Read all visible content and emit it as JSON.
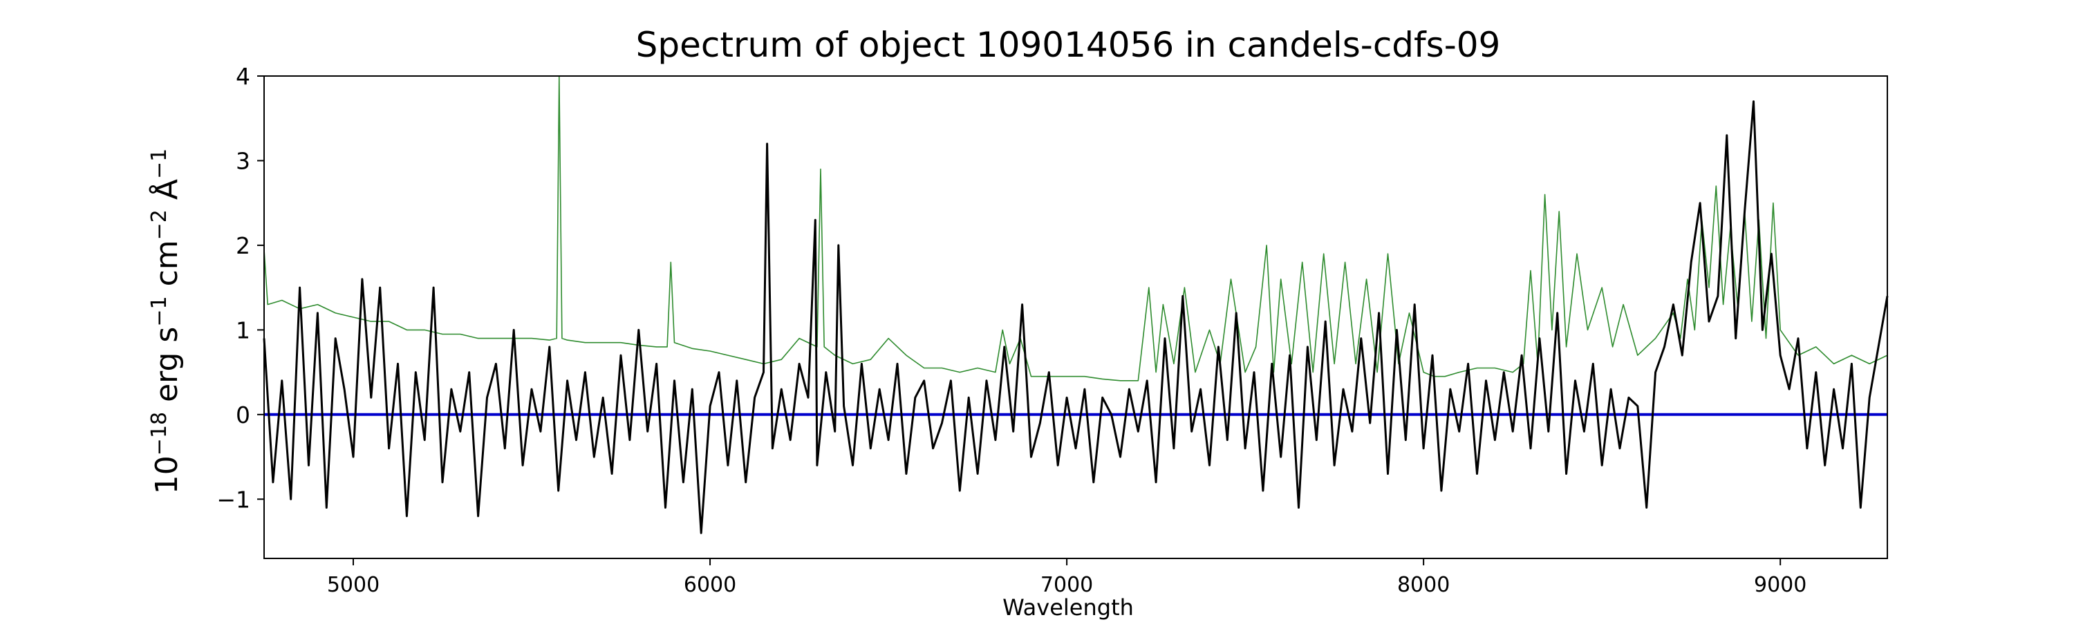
{
  "chart_data": {
    "type": "line",
    "title": "Spectrum of object 109014056 in candels-cdfs-09",
    "xlabel": "Wavelength",
    "ylabel": {
      "base": "10",
      "exp1": "−18",
      "erg": " erg s",
      "exp2": "−1",
      "cm": " cm",
      "exp3": "−2",
      "ang": " Å",
      "exp4": "−1"
    },
    "xlim": [
      4750,
      9300
    ],
    "ylim": [
      -1.7,
      4.0
    ],
    "x_ticks": [
      5000,
      6000,
      7000,
      8000,
      9000
    ],
    "x_tick_labels": [
      "5000",
      "6000",
      "7000",
      "8000",
      "9000"
    ],
    "y_ticks": [
      -1,
      0,
      1,
      2,
      3,
      4
    ],
    "y_tick_labels": [
      "−1",
      "0",
      "1",
      "2",
      "3",
      "4"
    ],
    "grid": false,
    "legend": "none",
    "colors": {
      "flux": "#000000",
      "noise": "#2e8b2e",
      "zero": "#0000cc"
    },
    "series": [
      {
        "key": "flux",
        "x": [
          4750,
          4775,
          4800,
          4825,
          4850,
          4875,
          4900,
          4925,
          4950,
          4975,
          5000,
          5025,
          5050,
          5075,
          5100,
          5125,
          5150,
          5175,
          5200,
          5225,
          5250,
          5275,
          5300,
          5325,
          5350,
          5375,
          5400,
          5425,
          5450,
          5475,
          5500,
          5525,
          5550,
          5575,
          5600,
          5625,
          5650,
          5675,
          5700,
          5725,
          5750,
          5775,
          5800,
          5825,
          5850,
          5875,
          5900,
          5925,
          5950,
          5975,
          6000,
          6025,
          6050,
          6075,
          6100,
          6125,
          6150,
          6160,
          6175,
          6200,
          6225,
          6250,
          6275,
          6295,
          6300,
          6325,
          6350,
          6360,
          6375,
          6400,
          6425,
          6450,
          6475,
          6500,
          6525,
          6550,
          6575,
          6600,
          6625,
          6650,
          6675,
          6700,
          6725,
          6750,
          6775,
          6800,
          6825,
          6850,
          6875,
          6900,
          6925,
          6950,
          6975,
          7000,
          7025,
          7050,
          7075,
          7100,
          7125,
          7150,
          7175,
          7200,
          7225,
          7250,
          7275,
          7300,
          7325,
          7350,
          7375,
          7400,
          7425,
          7450,
          7475,
          7500,
          7525,
          7550,
          7575,
          7600,
          7625,
          7650,
          7675,
          7700,
          7725,
          7750,
          7775,
          7800,
          7825,
          7850,
          7875,
          7900,
          7925,
          7950,
          7975,
          8000,
          8025,
          8050,
          8075,
          8100,
          8125,
          8150,
          8175,
          8200,
          8225,
          8250,
          8275,
          8300,
          8325,
          8350,
          8375,
          8400,
          8425,
          8450,
          8475,
          8500,
          8525,
          8550,
          8575,
          8600,
          8625,
          8650,
          8675,
          8700,
          8725,
          8750,
          8775,
          8800,
          8825,
          8850,
          8875,
          8900,
          8925,
          8950,
          8975,
          9000,
          9025,
          9050,
          9075,
          9100,
          9125,
          9150,
          9175,
          9200,
          9225,
          9250,
          9275,
          9300
        ],
        "y": [
          0.9,
          -0.8,
          0.4,
          -1.0,
          1.5,
          -0.6,
          1.2,
          -1.1,
          0.9,
          0.3,
          -0.5,
          1.6,
          0.2,
          1.5,
          -0.4,
          0.6,
          -1.2,
          0.5,
          -0.3,
          1.5,
          -0.8,
          0.3,
          -0.2,
          0.5,
          -1.2,
          0.2,
          0.6,
          -0.4,
          1.0,
          -0.6,
          0.3,
          -0.2,
          0.8,
          -0.9,
          0.4,
          -0.3,
          0.5,
          -0.5,
          0.2,
          -0.7,
          0.7,
          -0.3,
          1.0,
          -0.2,
          0.6,
          -1.1,
          0.4,
          -0.8,
          0.3,
          -1.4,
          0.1,
          0.5,
          -0.6,
          0.4,
          -0.8,
          0.2,
          0.5,
          3.2,
          -0.4,
          0.3,
          -0.3,
          0.6,
          0.2,
          2.3,
          -0.6,
          0.5,
          -0.2,
          2.0,
          0.1,
          -0.6,
          0.6,
          -0.4,
          0.3,
          -0.3,
          0.6,
          -0.7,
          0.2,
          0.4,
          -0.4,
          -0.1,
          0.4,
          -0.9,
          0.2,
          -0.7,
          0.4,
          -0.3,
          0.8,
          -0.2,
          1.3,
          -0.5,
          -0.1,
          0.5,
          -0.6,
          0.2,
          -0.4,
          0.3,
          -0.8,
          0.2,
          0.0,
          -0.5,
          0.3,
          -0.2,
          0.4,
          -0.8,
          0.9,
          -0.4,
          1.4,
          -0.2,
          0.3,
          -0.6,
          0.8,
          -0.3,
          1.2,
          -0.4,
          0.5,
          -0.9,
          0.6,
          -0.5,
          0.7,
          -1.1,
          0.8,
          -0.3,
          1.1,
          -0.6,
          0.3,
          -0.2,
          0.9,
          -0.1,
          1.2,
          -0.7,
          1.0,
          -0.3,
          1.3,
          -0.4,
          0.7,
          -0.9,
          0.3,
          -0.2,
          0.6,
          -0.7,
          0.4,
          -0.3,
          0.5,
          -0.2,
          0.7,
          -0.4,
          0.9,
          -0.2,
          1.2,
          -0.7,
          0.4,
          -0.2,
          0.6,
          -0.6,
          0.3,
          -0.4,
          0.2,
          0.1,
          -1.1,
          0.5,
          0.8,
          1.3,
          0.7,
          1.8,
          2.5,
          1.1,
          1.4,
          3.3,
          0.9,
          2.4,
          3.7,
          1.0,
          1.9,
          0.7,
          0.3,
          0.9,
          -0.4,
          0.5,
          -0.6,
          0.3,
          -0.4,
          0.6,
          -1.1,
          0.2,
          0.8,
          1.4
        ]
      },
      {
        "key": "noise",
        "x": [
          4750,
          4760,
          4800,
          4850,
          4900,
          4950,
          5000,
          5050,
          5100,
          5150,
          5200,
          5250,
          5300,
          5350,
          5400,
          5450,
          5500,
          5550,
          5570,
          5577,
          5585,
          5600,
          5650,
          5700,
          5750,
          5800,
          5850,
          5880,
          5890,
          5900,
          5950,
          6000,
          6050,
          6100,
          6150,
          6200,
          6250,
          6300,
          6310,
          6320,
          6350,
          6400,
          6450,
          6500,
          6550,
          6600,
          6650,
          6700,
          6750,
          6800,
          6820,
          6840,
          6870,
          6900,
          6950,
          7000,
          7050,
          7100,
          7150,
          7200,
          7230,
          7250,
          7270,
          7300,
          7330,
          7360,
          7400,
          7430,
          7460,
          7500,
          7530,
          7560,
          7580,
          7600,
          7630,
          7660,
          7690,
          7720,
          7750,
          7780,
          7810,
          7840,
          7870,
          7900,
          7930,
          7960,
          8000,
          8030,
          8060,
          8100,
          8150,
          8200,
          8250,
          8280,
          8300,
          8320,
          8340,
          8360,
          8380,
          8400,
          8430,
          8460,
          8500,
          8530,
          8560,
          8600,
          8650,
          8700,
          8720,
          8740,
          8760,
          8780,
          8800,
          8820,
          8840,
          8860,
          8880,
          8900,
          8920,
          8940,
          8960,
          8980,
          9000,
          9050,
          9100,
          9150,
          9200,
          9250,
          9300
        ],
        "y": [
          1.95,
          1.3,
          1.35,
          1.25,
          1.3,
          1.2,
          1.15,
          1.1,
          1.1,
          1.0,
          1.0,
          0.95,
          0.95,
          0.9,
          0.9,
          0.9,
          0.9,
          0.88,
          0.9,
          4.0,
          0.9,
          0.88,
          0.85,
          0.85,
          0.85,
          0.82,
          0.8,
          0.8,
          1.8,
          0.85,
          0.78,
          0.75,
          0.7,
          0.65,
          0.6,
          0.65,
          0.9,
          0.8,
          2.9,
          0.8,
          0.7,
          0.6,
          0.65,
          0.9,
          0.7,
          0.55,
          0.55,
          0.5,
          0.55,
          0.5,
          1.0,
          0.6,
          0.9,
          0.45,
          0.45,
          0.45,
          0.45,
          0.42,
          0.4,
          0.4,
          1.5,
          0.5,
          1.3,
          0.6,
          1.5,
          0.5,
          1.0,
          0.6,
          1.6,
          0.5,
          0.8,
          2.0,
          0.5,
          1.6,
          0.6,
          1.8,
          0.5,
          1.9,
          0.6,
          1.8,
          0.6,
          1.6,
          0.5,
          1.9,
          0.6,
          1.2,
          0.5,
          0.45,
          0.45,
          0.5,
          0.55,
          0.55,
          0.5,
          0.6,
          1.7,
          0.6,
          2.6,
          1.0,
          2.4,
          0.8,
          1.9,
          1.0,
          1.5,
          0.8,
          1.3,
          0.7,
          0.9,
          1.2,
          0.9,
          1.6,
          1.0,
          2.3,
          1.5,
          2.7,
          1.3,
          2.2,
          1.3,
          2.4,
          1.1,
          2.3,
          0.9,
          2.5,
          1.0,
          0.7,
          0.8,
          0.6,
          0.7,
          0.6,
          0.7
        ]
      },
      {
        "key": "zero",
        "x": [
          4750,
          9300
        ],
        "y": [
          0,
          0
        ]
      }
    ]
  }
}
